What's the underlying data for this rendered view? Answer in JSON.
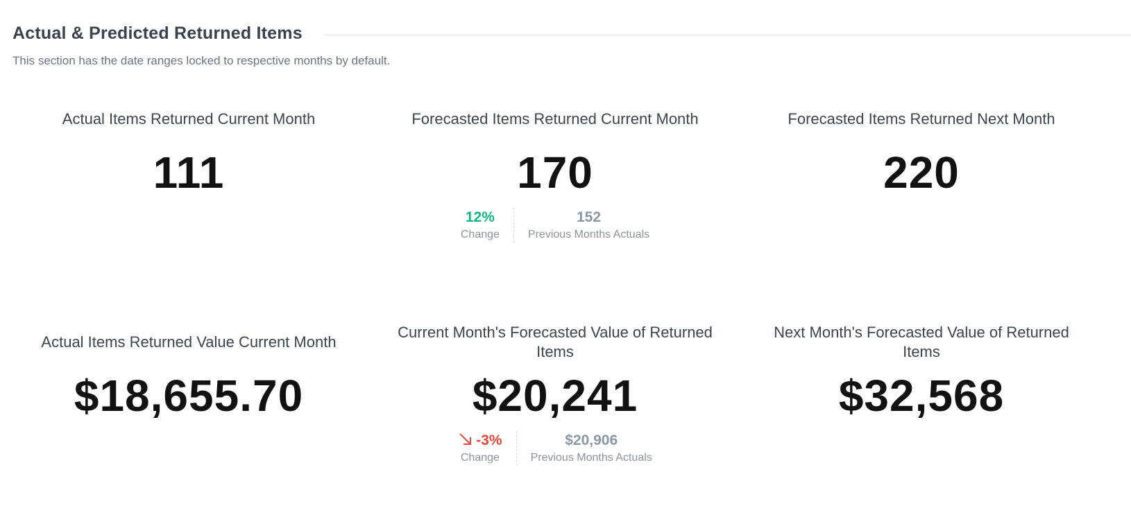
{
  "section": {
    "title": "Actual & Predicted Returned Items",
    "description": "This section has the date ranges locked to respective months by default."
  },
  "colors": {
    "positive": "#10b981",
    "negative": "#e5483c",
    "muted": "#8a97a6",
    "value": "#111111"
  },
  "tiles": [
    {
      "title": "Actual Items Returned Current Month",
      "value": "111"
    },
    {
      "title": "Forecasted Items Returned Current Month",
      "value": "170",
      "change": "12%",
      "change_label": "Change",
      "previous": "152",
      "previous_label": "Previous Months Actuals"
    },
    {
      "title": "Forecasted Items Returned Next Month",
      "value": "220"
    },
    {
      "title": "Actual Items Returned Value Current Month",
      "value": "$18,655.70"
    },
    {
      "title": "Current Month's Forecasted Value of Returned Items",
      "value": "$20,241",
      "change": "-3%",
      "change_icon": "arrow-down-right-icon",
      "change_label": "Change",
      "previous": "$20,906",
      "previous_label": "Previous Months Actuals"
    },
    {
      "title": "Next Month's Forecasted Value of Returned Items",
      "value": "$32,568"
    }
  ]
}
